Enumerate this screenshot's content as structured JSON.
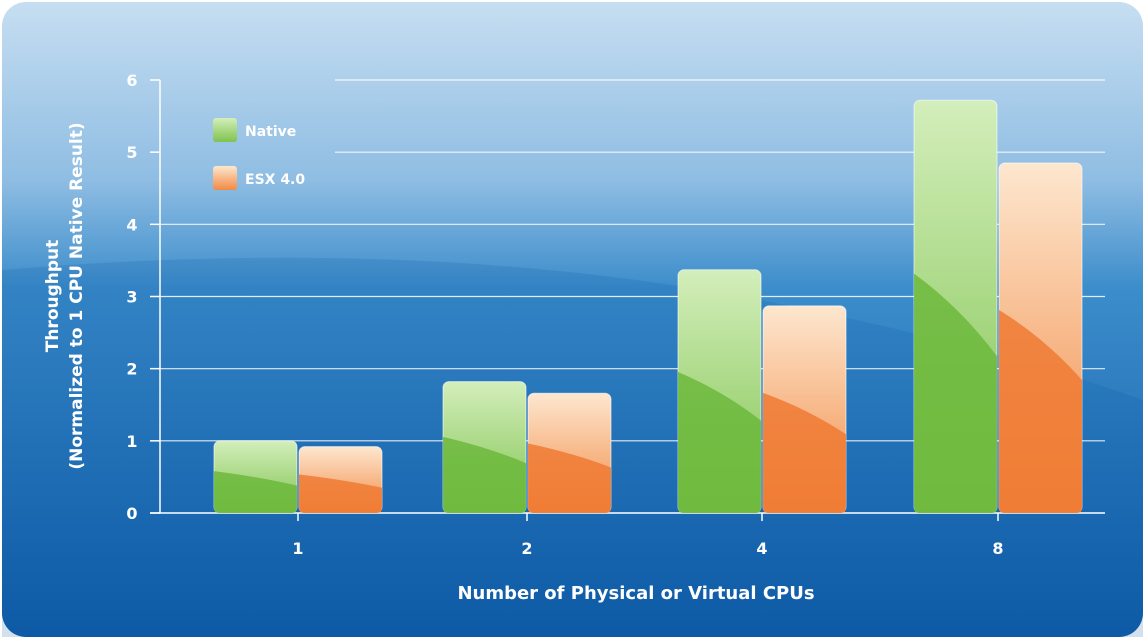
{
  "chart_data": {
    "type": "bar",
    "title": "",
    "xlabel": "Number of Physical or Virtual CPUs",
    "ylabel_line1": "Throughput",
    "ylabel_line2": "(Normalized to 1 CPU Native Result)",
    "categories": [
      "1",
      "2",
      "4",
      "8"
    ],
    "ylim": [
      0,
      6
    ],
    "yticks": [
      "0",
      "1",
      "2",
      "3",
      "4",
      "5",
      "6"
    ],
    "grid": true,
    "legend_position": "top-left",
    "series": [
      {
        "name": "Native",
        "values": [
          1.0,
          1.82,
          3.37,
          5.72
        ]
      },
      {
        "name": "ESX 4.0",
        "values": [
          0.92,
          1.66,
          2.87,
          4.85
        ]
      }
    ]
  },
  "colors": {
    "panel_top": "#bcd9ef",
    "panel_mid": "#3f8fcc",
    "panel_bottom": "#0f5ea9",
    "native_light": "#ccebb2",
    "native_dark": "#6cb83c",
    "esx_light": "#fde2c6",
    "esx_dark": "#ef7a33",
    "grid": "#ffffff",
    "text": "#ffffff"
  }
}
